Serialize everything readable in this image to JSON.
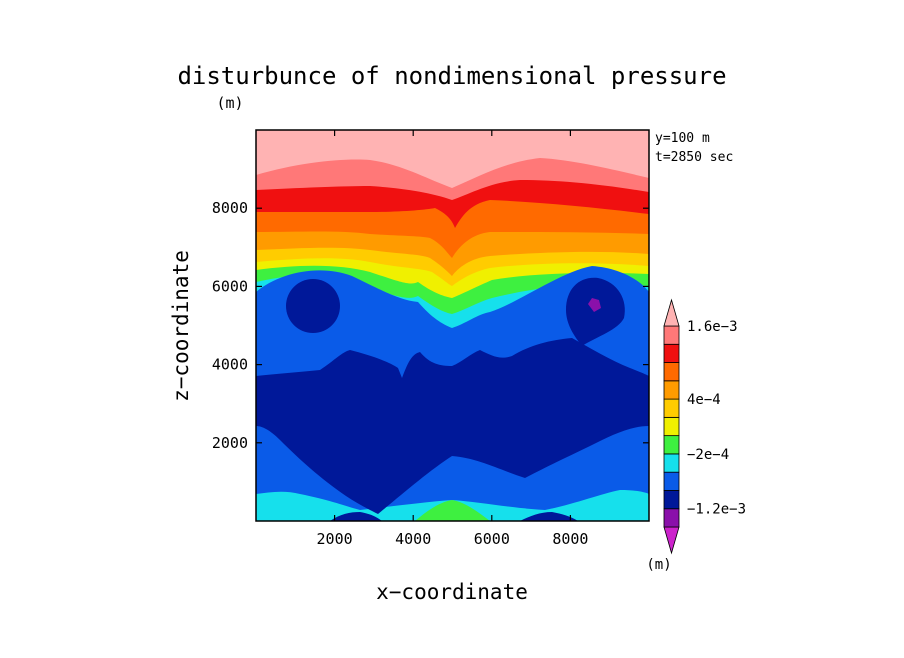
{
  "chart_data": {
    "type": "heatmap",
    "title": "disturbunce of nondimensional pressure",
    "title_unit": "(m)",
    "xlabel": "x−coordinate",
    "ylabel": "z−coordinate",
    "annotations": [
      "y=100 m",
      "t=2850 sec"
    ],
    "xlim": [
      0,
      10000
    ],
    "ylim": [
      0,
      10000
    ],
    "x_ticks": [
      2000,
      4000,
      6000,
      8000
    ],
    "y_ticks": [
      2000,
      4000,
      6000,
      8000
    ],
    "colorbar": {
      "unit": "(m)",
      "label_text": [
        "1.6e−3",
        "4e−4",
        "−2e−4",
        "−1.2e−3"
      ],
      "label_band_index": [
        11,
        7,
        4,
        1
      ],
      "colors": [
        "#cc22cc",
        "#8a10aa",
        "#001899",
        "#0a5be8",
        "#16e0ec",
        "#3ef040",
        "#f0f000",
        "#ffcc00",
        "#ff9b00",
        "#ff6a00",
        "#f01010",
        "#ff7878",
        "#ffb3b3"
      ]
    }
  }
}
